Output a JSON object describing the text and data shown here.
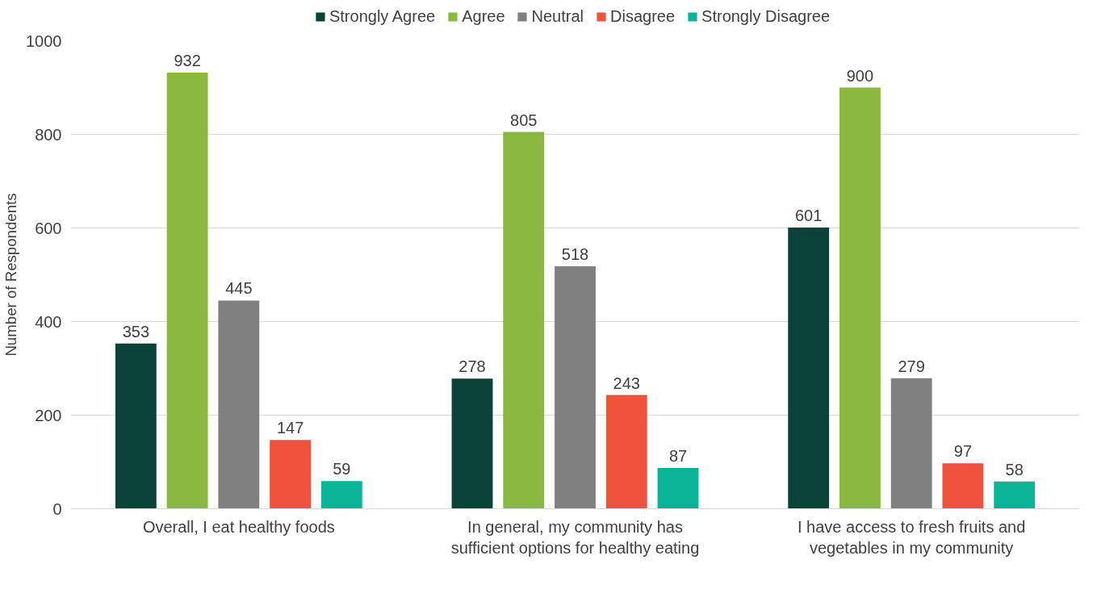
{
  "chart_data": {
    "type": "bar",
    "ylabel": "Number of Respondents",
    "categories": [
      "Overall, I eat healthy foods",
      "In general, my community has sufficient options for healthy eating",
      "I have access to fresh fruits and vegetables in my community"
    ],
    "series": [
      {
        "name": "Strongly Agree",
        "color": "#0a4238",
        "values": [
          353,
          278,
          601
        ]
      },
      {
        "name": "Agree",
        "color": "#8ab83f",
        "values": [
          932,
          805,
          900
        ]
      },
      {
        "name": "Neutral",
        "color": "#808080",
        "values": [
          445,
          518,
          279
        ]
      },
      {
        "name": "Disagree",
        "color": "#f0523c",
        "values": [
          147,
          243,
          97
        ]
      },
      {
        "name": "Strongly Disagree",
        "color": "#0ab596",
        "values": [
          59,
          87,
          58
        ]
      }
    ],
    "ylim": [
      0,
      1000
    ],
    "yticks": [
      0,
      200,
      400,
      600,
      800,
      1000
    ],
    "grid": "y",
    "legend": "top",
    "data_labels": true
  }
}
